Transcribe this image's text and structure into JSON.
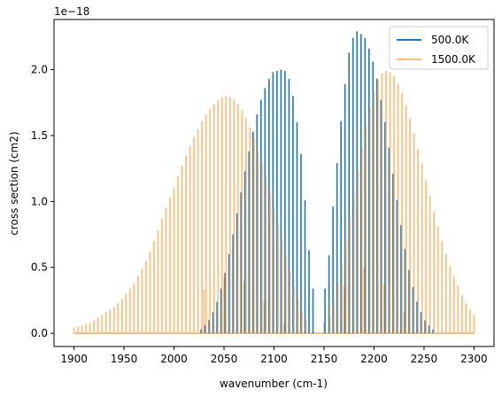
{
  "chart_data": {
    "type": "line",
    "xlabel": "wavenumber (cm-1)",
    "ylabel": "cross section (cm2)",
    "y_offset_label": "1e−18",
    "xlim": [
      1880,
      2320
    ],
    "ylim": [
      -0.1,
      2.38
    ],
    "x_ticks": [
      1900,
      1950,
      2000,
      2050,
      2100,
      2150,
      2200,
      2250,
      2300
    ],
    "x_tick_labels": [
      "1900",
      "1950",
      "2000",
      "2050",
      "2100",
      "2150",
      "2200",
      "2250",
      "2300"
    ],
    "y_ticks": [
      0.0,
      0.5,
      1.0,
      1.5,
      2.0
    ],
    "y_tick_labels": [
      "0.0",
      "0.5",
      "1.0",
      "1.5",
      "2.0"
    ],
    "grid": false,
    "legend_position": "top-right",
    "series": [
      {
        "name": "500.0K",
        "color": "#1f77b4",
        "opacity": 1.0,
        "description": "CO fundamental band P and R branch line peaks at 500 K",
        "line_peaks": [
          [
            2027,
            0.03
          ],
          [
            2031,
            0.06
          ],
          [
            2035,
            0.1
          ],
          [
            2039,
            0.16
          ],
          [
            2043,
            0.24
          ],
          [
            2047,
            0.34
          ],
          [
            2051,
            0.46
          ],
          [
            2055,
            0.6
          ],
          [
            2059,
            0.75
          ],
          [
            2063,
            0.91
          ],
          [
            2067,
            1.07
          ],
          [
            2071,
            1.23
          ],
          [
            2075,
            1.38
          ],
          [
            2079,
            1.53
          ],
          [
            2083,
            1.66
          ],
          [
            2087,
            1.77
          ],
          [
            2091,
            1.86
          ],
          [
            2095,
            1.93
          ],
          [
            2099,
            1.98
          ],
          [
            2103,
            1.99
          ],
          [
            2107,
            2.0
          ],
          [
            2111,
            1.99
          ],
          [
            2115,
            1.93
          ],
          [
            2119,
            1.8
          ],
          [
            2123,
            1.6
          ],
          [
            2127,
            1.36
          ],
          [
            2131,
            1.01
          ],
          [
            2135,
            0.63
          ],
          [
            2139,
            0.34
          ],
          [
            2151,
            0.34
          ],
          [
            2155,
            0.59
          ],
          [
            2159,
            0.96
          ],
          [
            2163,
            1.29
          ],
          [
            2167,
            1.61
          ],
          [
            2171,
            1.89
          ],
          [
            2175,
            2.13
          ],
          [
            2179,
            2.24
          ],
          [
            2183,
            2.29
          ],
          [
            2187,
            2.27
          ],
          [
            2191,
            2.24
          ],
          [
            2195,
            2.16
          ],
          [
            2199,
            2.06
          ],
          [
            2203,
            1.93
          ],
          [
            2207,
            1.77
          ],
          [
            2211,
            1.6
          ],
          [
            2215,
            1.41
          ],
          [
            2219,
            1.21
          ],
          [
            2223,
            1.01
          ],
          [
            2227,
            0.82
          ],
          [
            2231,
            0.64
          ],
          [
            2235,
            0.48
          ],
          [
            2239,
            0.35
          ],
          [
            2243,
            0.24
          ],
          [
            2247,
            0.16
          ],
          [
            2251,
            0.1
          ],
          [
            2255,
            0.06
          ],
          [
            2259,
            0.03
          ]
        ]
      },
      {
        "name": "1500.0K",
        "color": "#ffbb78",
        "opacity": 1.0,
        "description": "CO fundamental band line peaks at 1500 K, broader distribution",
        "line_peaks": [
          [
            1900,
            0.04
          ],
          [
            1904,
            0.05
          ],
          [
            1908,
            0.06
          ],
          [
            1912,
            0.07
          ],
          [
            1916,
            0.08
          ],
          [
            1920,
            0.1
          ],
          [
            1924,
            0.12
          ],
          [
            1928,
            0.14
          ],
          [
            1932,
            0.16
          ],
          [
            1936,
            0.18
          ],
          [
            1940,
            0.2
          ],
          [
            1944,
            0.23
          ],
          [
            1948,
            0.26
          ],
          [
            1952,
            0.3
          ],
          [
            1956,
            0.34
          ],
          [
            1960,
            0.38
          ],
          [
            1964,
            0.43
          ],
          [
            1968,
            0.49
          ],
          [
            1972,
            0.55
          ],
          [
            1976,
            0.62
          ],
          [
            1980,
            0.7
          ],
          [
            1984,
            0.78
          ],
          [
            1988,
            0.87
          ],
          [
            1992,
            0.95
          ],
          [
            1996,
            1.03
          ],
          [
            2000,
            1.11
          ],
          [
            2004,
            1.19
          ],
          [
            2008,
            1.27
          ],
          [
            2012,
            1.35
          ],
          [
            2016,
            1.42
          ],
          [
            2020,
            1.49
          ],
          [
            2024,
            1.55
          ],
          [
            2028,
            1.61
          ],
          [
            2032,
            1.66
          ],
          [
            2036,
            1.7
          ],
          [
            2040,
            1.74
          ],
          [
            2044,
            1.77
          ],
          [
            2048,
            1.79
          ],
          [
            2052,
            1.8
          ],
          [
            2056,
            1.79
          ],
          [
            2060,
            1.77
          ],
          [
            2064,
            1.74
          ],
          [
            2068,
            1.69
          ],
          [
            2072,
            1.63
          ],
          [
            2076,
            1.56
          ],
          [
            2080,
            1.48
          ],
          [
            2084,
            1.39
          ],
          [
            2088,
            1.29
          ],
          [
            2092,
            1.18
          ],
          [
            2096,
            1.06
          ],
          [
            2100,
            0.95
          ],
          [
            2104,
            0.83
          ],
          [
            2108,
            0.71
          ],
          [
            2112,
            0.59
          ],
          [
            2116,
            0.47
          ],
          [
            2120,
            0.36
          ],
          [
            2124,
            0.26
          ],
          [
            2128,
            0.17
          ],
          [
            2132,
            0.1
          ],
          [
            2156,
            0.12
          ],
          [
            2160,
            0.24
          ],
          [
            2164,
            0.38
          ],
          [
            2168,
            0.53
          ],
          [
            2172,
            0.7
          ],
          [
            2176,
            0.88
          ],
          [
            2180,
            1.06
          ],
          [
            2184,
            1.24
          ],
          [
            2188,
            1.41
          ],
          [
            2192,
            1.57
          ],
          [
            2196,
            1.71
          ],
          [
            2200,
            1.83
          ],
          [
            2204,
            1.92
          ],
          [
            2208,
            1.97
          ],
          [
            2212,
            1.99
          ],
          [
            2216,
            1.98
          ],
          [
            2220,
            1.95
          ],
          [
            2224,
            1.89
          ],
          [
            2228,
            1.82
          ],
          [
            2232,
            1.73
          ],
          [
            2236,
            1.63
          ],
          [
            2240,
            1.52
          ],
          [
            2244,
            1.4
          ],
          [
            2248,
            1.28
          ],
          [
            2252,
            1.16
          ],
          [
            2256,
            1.04
          ],
          [
            2260,
            0.92
          ],
          [
            2264,
            0.81
          ],
          [
            2268,
            0.7
          ],
          [
            2272,
            0.6
          ],
          [
            2276,
            0.51
          ],
          [
            2280,
            0.43
          ],
          [
            2284,
            0.36
          ],
          [
            2288,
            0.29
          ],
          [
            2292,
            0.23
          ],
          [
            2296,
            0.18
          ],
          [
            2300,
            0.14
          ]
        ],
        "hot_band_peaks": [
          [
            2020,
            0.28
          ],
          [
            2030,
            0.33
          ],
          [
            2040,
            0.38
          ],
          [
            2050,
            0.42
          ],
          [
            2060,
            0.43
          ],
          [
            2070,
            0.4
          ],
          [
            2080,
            0.33
          ],
          [
            2090,
            0.24
          ],
          [
            2100,
            0.15
          ],
          [
            2110,
            0.07
          ],
          [
            2150,
            0.08
          ],
          [
            2160,
            0.22
          ],
          [
            2170,
            0.36
          ],
          [
            2180,
            0.46
          ],
          [
            2190,
            0.5
          ],
          [
            2200,
            0.47
          ],
          [
            2210,
            0.38
          ],
          [
            2220,
            0.27
          ],
          [
            2230,
            0.16
          ],
          [
            2240,
            0.08
          ]
        ]
      }
    ]
  }
}
